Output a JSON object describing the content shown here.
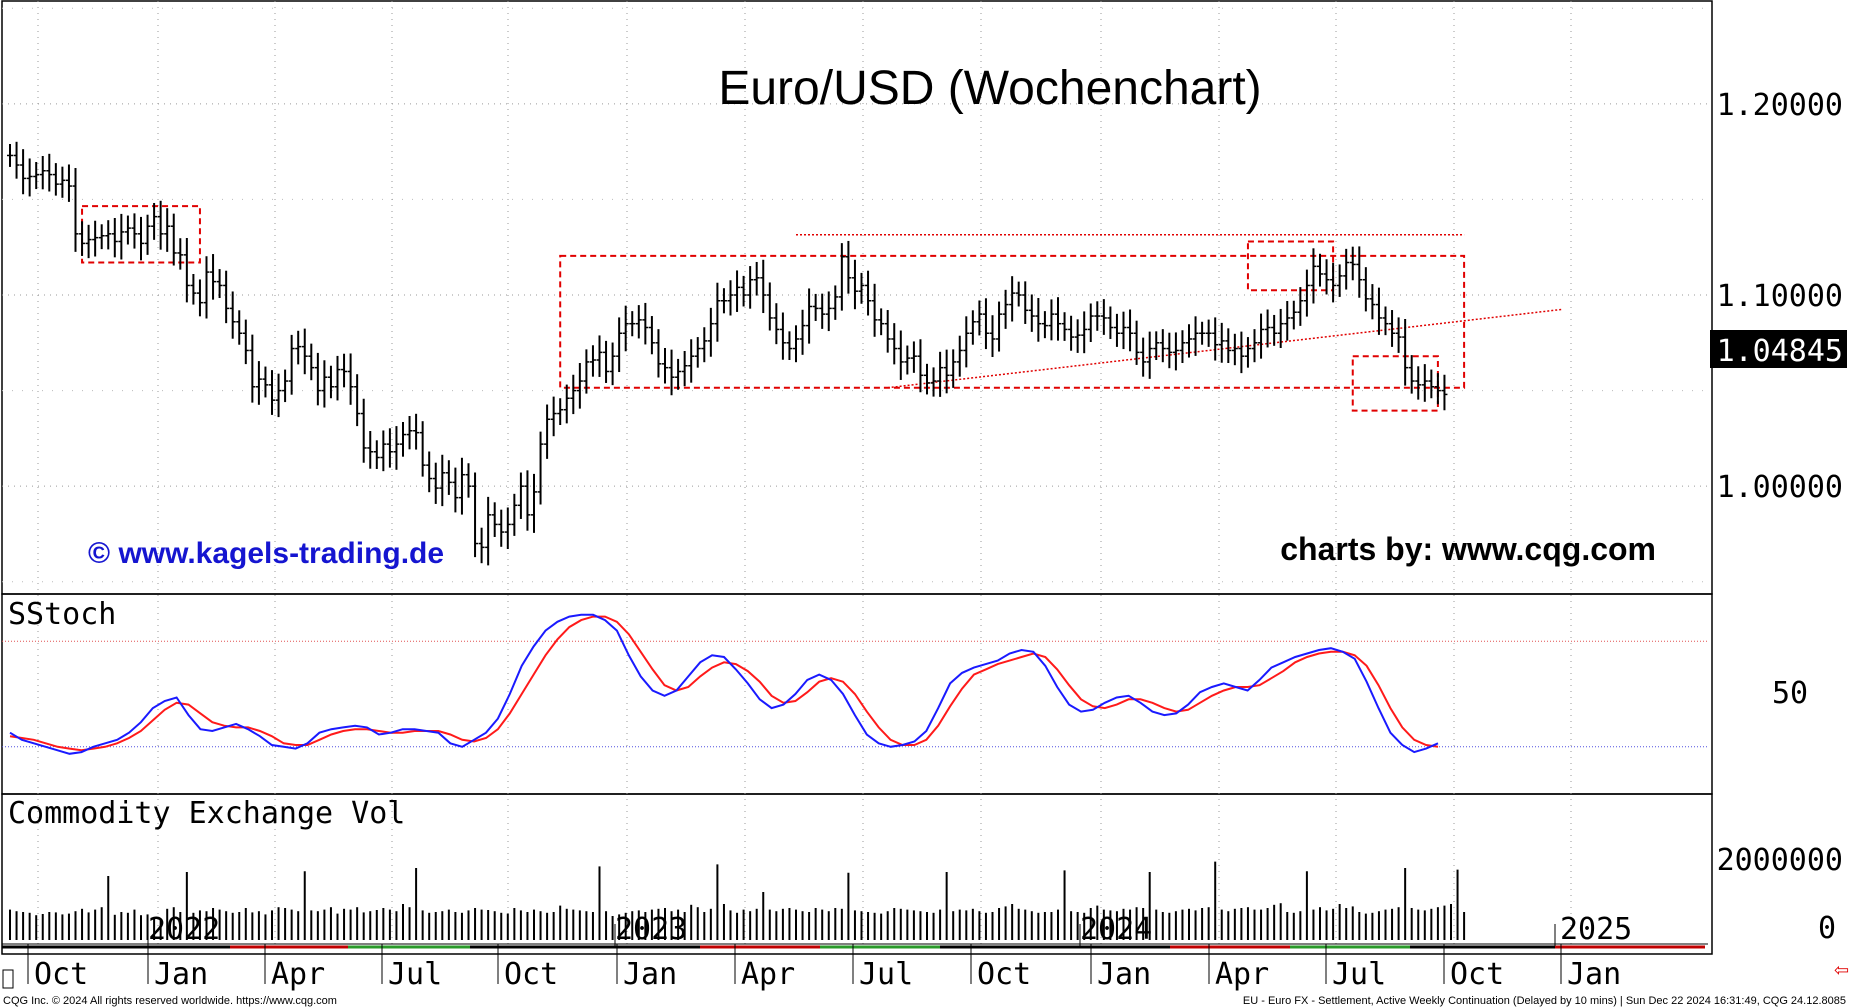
{
  "chart_data": {
    "type": "ohlc",
    "title": "Euro/USD (Wochenchart)",
    "watermark_left": "© www.kagels-trading.de",
    "watermark_right": "charts by: www.cqg.com",
    "last_price_label": "1.04845",
    "price_axis": {
      "ylim": [
        0.9436,
        1.2538
      ],
      "ticks": [
        "1.20000",
        "1.10000",
        "1.00000"
      ]
    },
    "price_series": [
      1.173,
      1.168,
      1.161,
      1.162,
      1.163,
      1.165,
      1.163,
      1.158,
      1.16,
      1.157,
      1.132,
      1.127,
      1.129,
      1.13,
      1.131,
      1.132,
      1.128,
      1.133,
      1.135,
      1.132,
      1.127,
      1.136,
      1.141,
      1.132,
      1.136,
      1.122,
      1.121,
      1.105,
      1.101,
      1.096,
      1.112,
      1.107,
      1.105,
      1.093,
      1.086,
      1.08,
      1.071,
      1.052,
      1.056,
      1.053,
      1.045,
      1.05,
      1.055,
      1.072,
      1.073,
      1.068,
      1.062,
      1.05,
      1.057,
      1.052,
      1.061,
      1.06,
      1.052,
      1.038,
      1.02,
      1.018,
      1.015,
      1.022,
      1.018,
      1.022,
      1.027,
      1.029,
      1.028,
      1.011,
      1.004,
      0.999,
      1.007,
      1.002,
      0.994,
      1.006,
      1.0,
      0.97,
      0.968,
      0.985,
      0.98,
      0.976,
      0.98,
      0.99,
      1.0,
      0.985,
      0.997,
      1.022,
      1.035,
      1.038,
      1.04,
      1.046,
      1.05,
      1.055,
      1.065,
      1.066,
      1.07,
      1.06,
      1.068,
      1.08,
      1.085,
      1.085,
      1.087,
      1.083,
      1.075,
      1.064,
      1.062,
      1.057,
      1.06,
      1.063,
      1.068,
      1.072,
      1.076,
      1.085,
      1.097,
      1.097,
      1.1,
      1.104,
      1.1,
      1.108,
      1.109,
      1.1,
      1.088,
      1.082,
      1.075,
      1.072,
      1.077,
      1.084,
      1.094,
      1.093,
      1.09,
      1.093,
      1.099,
      1.12,
      1.109,
      1.102,
      1.105,
      1.097,
      1.087,
      1.085,
      1.077,
      1.072,
      1.065,
      1.067,
      1.068,
      1.058,
      1.054,
      1.055,
      1.062,
      1.058,
      1.065,
      1.071,
      1.08,
      1.086,
      1.09,
      1.08,
      1.077,
      1.09,
      1.095,
      1.101,
      1.1,
      1.092,
      1.089,
      1.085,
      1.084,
      1.09,
      1.085,
      1.082,
      1.078,
      1.079,
      1.082,
      1.089,
      1.089,
      1.088,
      1.083,
      1.08,
      1.083,
      1.08,
      1.07,
      1.065,
      1.072,
      1.075,
      1.072,
      1.07,
      1.071,
      1.075,
      1.077,
      1.08,
      1.08,
      1.08,
      1.074,
      1.076,
      1.071,
      1.072,
      1.068,
      1.072,
      1.075,
      1.082,
      1.083,
      1.08,
      1.085,
      1.088,
      1.091,
      1.097,
      1.105,
      1.115,
      1.111,
      1.108,
      1.105,
      1.11,
      1.117,
      1.116,
      1.108,
      1.098,
      1.095,
      1.088,
      1.085,
      1.08,
      1.078,
      1.062,
      1.055,
      1.053,
      1.055,
      1.052,
      1.05,
      1.048
    ],
    "stoch_axis": {
      "ylim": [
        0,
        100
      ],
      "ticks": [
        "50"
      ],
      "upper": 80,
      "lower": 20
    },
    "stoch_k": [
      28,
      24,
      22,
      20,
      18,
      16,
      17,
      20,
      22,
      24,
      28,
      34,
      42,
      46,
      48,
      38,
      30,
      29,
      31,
      33,
      30,
      26,
      21,
      20,
      19,
      22,
      28,
      30,
      31,
      32,
      31,
      27,
      28,
      30,
      30,
      29,
      28,
      22,
      20,
      24,
      28,
      36,
      50,
      66,
      77,
      86,
      91,
      94,
      95,
      95,
      92,
      86,
      72,
      60,
      52,
      49,
      52,
      60,
      68,
      72,
      71,
      64,
      56,
      47,
      42,
      44,
      50,
      58,
      61,
      58,
      50,
      38,
      27,
      22,
      20,
      21,
      23,
      29,
      42,
      56,
      62,
      65,
      67,
      69,
      73,
      75,
      74,
      66,
      54,
      44,
      40,
      41,
      45,
      48,
      49,
      45,
      40,
      38,
      39,
      44,
      51,
      54,
      56,
      54,
      52,
      58,
      65,
      68,
      71,
      73,
      75,
      76,
      74,
      70,
      57,
      42,
      28,
      21,
      17,
      19,
      22
    ],
    "stoch_d": [
      26,
      25,
      24,
      22,
      20,
      19,
      18,
      19,
      20,
      22,
      25,
      29,
      35,
      41,
      45,
      44,
      39,
      34,
      32,
      31,
      31,
      29,
      26,
      22,
      21,
      21,
      24,
      27,
      29,
      30,
      30,
      29,
      28,
      28,
      29,
      29,
      29,
      27,
      24,
      23,
      25,
      30,
      39,
      50,
      61,
      72,
      81,
      88,
      92,
      94,
      94,
      91,
      84,
      74,
      64,
      55,
      52,
      54,
      60,
      65,
      68,
      67,
      63,
      57,
      49,
      45,
      46,
      51,
      57,
      59,
      57,
      50,
      40,
      31,
      24,
      21,
      21,
      24,
      32,
      43,
      53,
      61,
      64,
      67,
      69,
      71,
      73,
      71,
      64,
      55,
      47,
      43,
      42,
      44,
      47,
      47,
      45,
      42,
      40,
      41,
      45,
      49,
      52,
      54,
      54,
      55,
      59,
      63,
      68,
      71,
      73,
      74,
      74,
      72,
      66,
      55,
      42,
      31,
      24,
      21,
      20
    ],
    "volume_axis": {
      "ticks": [
        "2000000",
        "0"
      ]
    },
    "volume_max": 3000000,
    "volume": [
      760000,
      720000,
      700000,
      680000,
      620000,
      650000,
      700000,
      690000,
      640000,
      660000,
      720000,
      780000,
      690000,
      760000,
      820000,
      1600000,
      630000,
      700000,
      680000,
      760000,
      620000,
      640000,
      550000,
      480000,
      780000,
      820000,
      700000,
      1700000,
      680000,
      740000,
      720000,
      800000,
      760000,
      720000,
      680000,
      700000,
      800000,
      690000,
      720000,
      640000,
      740000,
      820000,
      800000,
      760000,
      720000,
      1720000,
      740000,
      720000,
      760000,
      820000,
      660000,
      780000,
      760000,
      820000,
      690000,
      720000,
      750000,
      800000,
      760000,
      720000,
      900000,
      820000,
      1800000,
      740000,
      680000,
      700000,
      720000,
      760000,
      700000,
      680000,
      740000,
      800000,
      760000,
      750000,
      720000,
      680000,
      660000,
      800000,
      740000,
      700000,
      760000,
      720000,
      680000,
      700000,
      860000,
      780000,
      760000,
      740000,
      720000,
      700000,
      1840000,
      720000,
      600000,
      640000,
      680000,
      720000,
      740000,
      700000,
      760000,
      780000,
      800000,
      720000,
      760000,
      700000,
      880000,
      820000,
      700000,
      780000,
      1890000,
      900000,
      740000,
      680000,
      760000,
      720000,
      780000,
      1200000,
      760000,
      720000,
      780000,
      800000,
      760000,
      720000,
      700000,
      800000,
      760000,
      720000,
      800000,
      780000,
      1680000,
      740000,
      720000,
      700000,
      680000,
      660000,
      720000,
      800000,
      780000,
      760000,
      740000,
      720000,
      700000,
      680000,
      760000,
      1700000,
      720000,
      760000,
      740000,
      780000,
      720000,
      680000,
      700000,
      800000,
      840000,
      900000,
      780000,
      760000,
      720000,
      680000,
      700000,
      700000,
      760000,
      1740000,
      720000,
      700000,
      680000,
      800000,
      860000,
      760000,
      740000,
      720000,
      780000,
      760000,
      820000,
      800000,
      1700000,
      760000,
      700000,
      680000,
      720000,
      760000,
      780000,
      740000,
      800000,
      820000,
      1960000,
      760000,
      720000,
      780000,
      800000,
      820000,
      760000,
      760000,
      800000,
      880000,
      920000,
      700000,
      680000,
      720000,
      1720000,
      760000,
      820000,
      740000,
      780000,
      900000,
      800000,
      840000,
      700000,
      660000,
      680000,
      720000,
      760000,
      780000,
      820000,
      1800000,
      800000,
      760000,
      740000,
      780000,
      820000,
      860000,
      900000,
      1760000,
      700000
    ],
    "time_labels": [
      "Oct",
      "Jan",
      "Apr",
      "Jul",
      "Oct",
      "Jan",
      "Apr",
      "Jul",
      "Oct",
      "Jan",
      "Apr",
      "Jul",
      "Oct",
      "Jan"
    ],
    "year_labels": [
      "2022",
      "2023",
      "2024",
      "2025"
    ],
    "annotations": {
      "boxes": [
        {
          "x0": 11,
          "x1": 29,
          "y0": 1.117,
          "y1": 1.1465
        },
        {
          "x0": 84,
          "x1": 222,
          "y0": 1.0515,
          "y1": 1.1205
        },
        {
          "x0": 189,
          "x1": 202,
          "y0": 1.1025,
          "y1": 1.128
        },
        {
          "x0": 205,
          "x1": 218,
          "y0": 1.0395,
          "y1": 1.068
        }
      ],
      "lines": [
        {
          "x0": 120,
          "y0": 1.1315,
          "x1": 222,
          "y1": 1.1315
        },
        {
          "x0": 134,
          "y0": 1.0515,
          "x1": 237,
          "y1": 1.0925
        }
      ]
    }
  },
  "panels": {
    "stoch_title": "SStoch",
    "volume_title": "Commodity Exchange Vol"
  },
  "footer": {
    "left": "CQG Inc. © 2024 All rights reserved worldwide. https://www.cqg.com",
    "right": "EU - Euro FX - Settlement, Active Weekly Continuation (Delayed by 10 mins) | Sun Dec 22 2024 16:31:49, CQG 24.12.8085"
  },
  "colors": {
    "price": "#000000",
    "stoch_k": "#1a1aff",
    "stoch_d": "#ff1a1a",
    "annotation": "#e00000",
    "grid": "#9a9a9a",
    "last_price_bg": "#000000"
  }
}
